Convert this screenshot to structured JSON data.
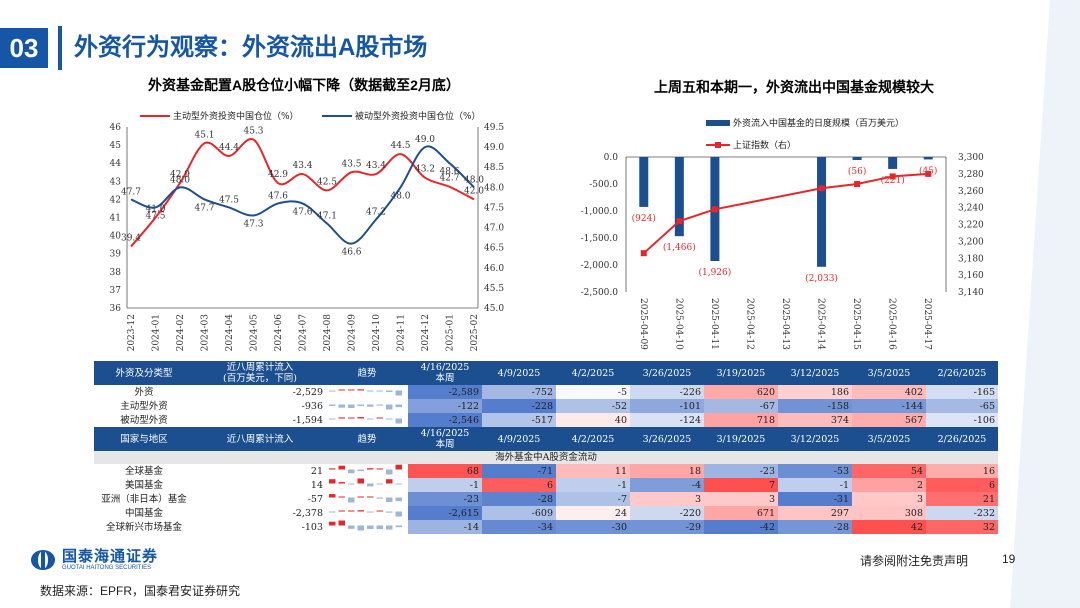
{
  "header": {
    "section_no": "03",
    "title": "外资行为观察：外资流出A股市场"
  },
  "left_chart": {
    "title": "外资基金配置A股仓位小幅下降（数据截至2月底）",
    "chart_data": {
      "type": "line",
      "x": [
        "2023-12",
        "2024-01",
        "2024-02",
        "2024-03",
        "2024-04",
        "2024-05",
        "2024-06",
        "2024-07",
        "2024-08",
        "2024-09",
        "2024-10",
        "2024-11",
        "2024-12",
        "2025-01",
        "2025-02"
      ],
      "ylim_left": [
        36,
        46
      ],
      "ylim_right": [
        45.0,
        49.5
      ],
      "yticks_left": [
        "46",
        "45",
        "44",
        "43",
        "42",
        "41",
        "40",
        "39",
        "38",
        "37",
        "36"
      ],
      "yticks_right": [
        "49.5",
        "49.0",
        "48.5",
        "48.0",
        "47.5",
        "47.0",
        "46.5",
        "46.0",
        "45.5",
        "45.0"
      ],
      "series": [
        {
          "name": "主动型外资投资中国仓位（%）",
          "axis": "left",
          "color": "#e8262a",
          "values": [
            39.4,
            41.0,
            42.9,
            45.1,
            44.4,
            45.3,
            42.9,
            43.4,
            42.5,
            43.5,
            43.4,
            44.5,
            43.2,
            42.7,
            42.0
          ],
          "labels": [
            "39.4",
            "41.0",
            "42.9",
            "45.1",
            "44.4",
            "45.3",
            "42.9",
            "43.4",
            "42.5",
            "43.5",
            "43.4",
            "44.5",
            "43.2",
            "42.7",
            "42.0"
          ]
        },
        {
          "name": "被动型外资投资中国仓位（%）",
          "axis": "right",
          "color": "#1b4f8f",
          "values": [
            47.7,
            47.5,
            48.0,
            47.7,
            47.5,
            47.3,
            47.6,
            47.6,
            47.1,
            46.6,
            47.2,
            48.0,
            49.0,
            48.6,
            48.0
          ],
          "labels": [
            "47.7",
            "47.5",
            "48.0",
            "47.7",
            "47.5",
            "47.3",
            "47.6",
            "47.6",
            "47.1",
            "46.6",
            "47.2",
            "48.0",
            "49.0",
            "48.6",
            "48.0"
          ]
        }
      ]
    }
  },
  "right_chart": {
    "title": "上周五和本期一，外资流出中国基金规模较大",
    "chart_data": {
      "type": "bar",
      "categories": [
        "2025-04-09",
        "2025-04-10",
        "2025-04-11",
        "2025-04-12",
        "2025-04-13",
        "2025-04-14",
        "2025-04-15",
        "2025-04-16",
        "2025-04-17"
      ],
      "ylim_left": [
        -2500,
        0
      ],
      "ylim_right": [
        3140,
        3300
      ],
      "yticks_left": [
        "0.0",
        "-500.0",
        "-1,000.0",
        "-1,500.0",
        "-2,000.0",
        "-2,500.0"
      ],
      "yticks_right": [
        "3,300",
        "3,280",
        "3,260",
        "3,240",
        "3,220",
        "3,200",
        "3,180",
        "3,160",
        "3,140"
      ],
      "series": [
        {
          "name": "外资流入中国基金的日度规模（百万美元）",
          "axis": "left",
          "color": "#1b4f8f",
          "values": [
            -924,
            -1466,
            -1926,
            null,
            null,
            -2033,
            -56,
            -221,
            -45
          ],
          "labels": [
            "(924)",
            "(1,466)",
            "(1,926)",
            "",
            "",
            "(2,033)",
            "(56)",
            "(221)",
            "(45)"
          ]
        },
        {
          "name": "上证指数（右）",
          "axis": "right",
          "color": "#e8262a",
          "values": [
            3186,
            3224,
            3238,
            null,
            null,
            3263,
            3268,
            3277,
            3280
          ]
        }
      ]
    }
  },
  "table1": {
    "headers": [
      "外资及分类型",
      "近八周累计流入\n(百万美元，下同)",
      "趋势",
      "4/16/2025\n本周",
      "4/9/2025",
      "4/2/2025",
      "3/26/2025",
      "3/19/2025",
      "3/12/2025",
      "3/5/2025",
      "2/26/2025"
    ],
    "rows": [
      {
        "name": "外资",
        "total": "-2,529",
        "cells": [
          "-2,589",
          "-752",
          "-5",
          "-226",
          "620",
          "186",
          "402",
          "-165"
        ],
        "nums": [
          -2589,
          -752,
          -5,
          -226,
          620,
          186,
          402,
          -165
        ]
      },
      {
        "name": "主动型外资",
        "total": "-936",
        "cells": [
          "-122",
          "-228",
          "-52",
          "-101",
          "-67",
          "-158",
          "-144",
          "-65"
        ],
        "nums": [
          -122,
          -228,
          -52,
          -101,
          -67,
          -158,
          -144,
          -65
        ]
      },
      {
        "name": "被动型外资",
        "total": "-1,594",
        "cells": [
          "-2,546",
          "-517",
          "40",
          "-124",
          "718",
          "374",
          "567",
          "-106"
        ],
        "nums": [
          -2546,
          -517,
          40,
          -124,
          718,
          374,
          567,
          -106
        ]
      }
    ]
  },
  "table2": {
    "headers": [
      "国家与地区",
      "近八周累计流入",
      "趋势",
      "4/16/2025\n本周",
      "4/9/2025",
      "4/2/2025",
      "3/26/2025",
      "3/19/2025",
      "3/12/2025",
      "3/5/2025",
      "2/26/2025"
    ],
    "subheader": "海外基金中A股资金流动",
    "rows": [
      {
        "name": "全球基金",
        "total": "21",
        "cells": [
          "68",
          "-71",
          "11",
          "18",
          "-23",
          "-53",
          "54",
          "16"
        ],
        "nums": [
          68,
          -71,
          11,
          18,
          -23,
          -53,
          54,
          16
        ]
      },
      {
        "name": "美国基金",
        "total": "14",
        "cells": [
          "-1",
          "6",
          "-1",
          "-4",
          "7",
          "-1",
          "2",
          "6"
        ],
        "nums": [
          -1,
          6,
          -1,
          -4,
          7,
          -1,
          2,
          6
        ]
      },
      {
        "name": "亚洲（非日本）基金",
        "total": "-57",
        "cells": [
          "-23",
          "-28",
          "-7",
          "3",
          "3",
          "-31",
          "3",
          "21"
        ],
        "nums": [
          -23,
          -28,
          -7,
          3,
          3,
          -31,
          3,
          21
        ]
      },
      {
        "name": "中国基金",
        "total": "-2,378",
        "cells": [
          "-2,615",
          "-609",
          "24",
          "-220",
          "671",
          "297",
          "308",
          "-232"
        ],
        "nums": [
          -2615,
          -609,
          24,
          -220,
          671,
          297,
          308,
          -232
        ]
      },
      {
        "name": "全球新兴市场基金",
        "total": "-103",
        "cells": [
          "-14",
          "-34",
          "-30",
          "-29",
          "-42",
          "-28",
          "42",
          "32"
        ],
        "nums": [
          -14,
          -34,
          -30,
          -29,
          -42,
          -28,
          42,
          32
        ]
      }
    ]
  },
  "footer": {
    "logo_cn": "国泰海通证券",
    "logo_en": "GUOTAI HAITONG SECURITIES",
    "disclaimer": "请参阅附注免责声明",
    "page": "19",
    "source": "数据来源：EPFR，国泰君安证券研究"
  },
  "colors": {
    "brand": "#1556a6",
    "header_bg": "#1b4f8f",
    "positive": "#e8262a",
    "negative": "#1b4f8f"
  }
}
